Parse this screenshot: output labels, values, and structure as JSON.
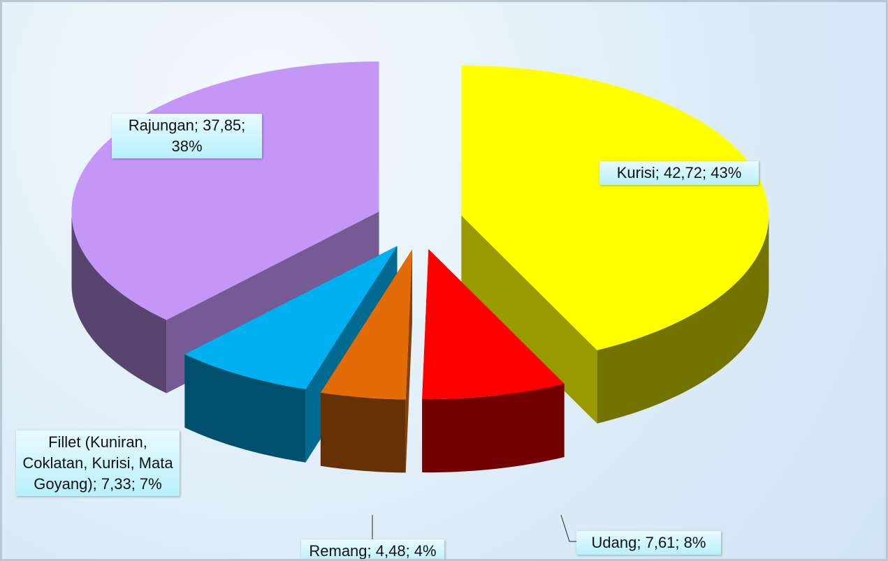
{
  "chart_data": {
    "type": "pie3d",
    "values": [
      42.72,
      7.61,
      4.48,
      7.33,
      37.85
    ],
    "value_labels": [
      "Kurisi; 42,72; 43%",
      "Udang; 7,61; 8%",
      "Remang; 4,48; 4%",
      "Fillet (Kuniran, Coklatan, Kurisi, Mata Goyang); 7,33; 7%",
      "Rajungan; 37,85; 38%"
    ],
    "colors": [
      "#ffff00",
      "#ff0000",
      "#e36c09",
      "#00b0f0",
      "#c496f7"
    ]
  }
}
